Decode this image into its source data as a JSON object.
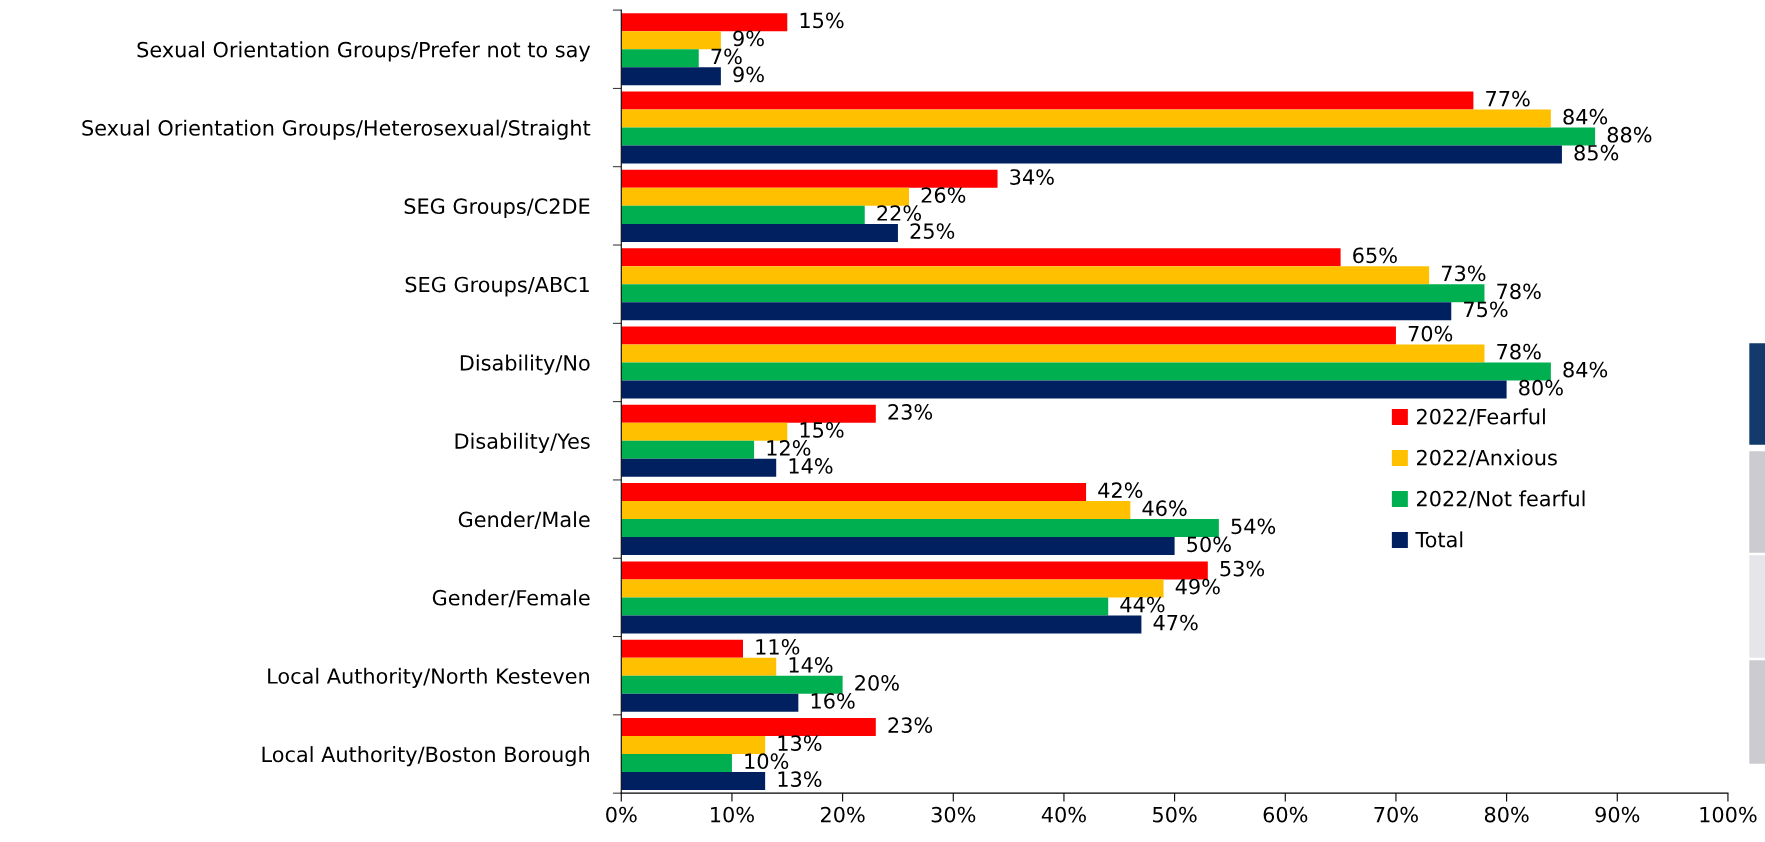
{
  "chart_data": {
    "type": "bar",
    "orientation": "horizontal",
    "categories": [
      "Sexual Orientation Groups/Prefer not to say",
      "Sexual Orientation Groups/Heterosexual/Straight",
      "SEG Groups/C2DE",
      "SEG Groups/ABC1",
      "Disability/No",
      "Disability/Yes",
      "Gender/Male",
      "Gender/Female",
      "Local Authority/North Kesteven",
      "Local Authority/Boston Borough"
    ],
    "series": [
      {
        "name": "2022/Fearful",
        "color": "#ff0000",
        "values": [
          15,
          77,
          34,
          65,
          70,
          23,
          42,
          53,
          11,
          23
        ],
        "value_labels": [
          "15%",
          "77%",
          "34%",
          "65%",
          "70%",
          "23%",
          "42%",
          "53%",
          "11%",
          "23%"
        ]
      },
      {
        "name": "2022/Anxious",
        "color": "#ffc000",
        "values": [
          9,
          84,
          26,
          73,
          78,
          15,
          46,
          49,
          14,
          13
        ],
        "value_labels": [
          "9%",
          "84%",
          "26%",
          "73%",
          "78%",
          "15%",
          "46%",
          "49%",
          "14%",
          "13%"
        ]
      },
      {
        "name": "2022/Not fearful",
        "color": "#00b050",
        "values": [
          7,
          88,
          22,
          78,
          84,
          12,
          54,
          44,
          20,
          10
        ],
        "value_labels": [
          "7%",
          "88%",
          "22%",
          "78%",
          "84%",
          "12%",
          "54%",
          "44%",
          "20%",
          "10%"
        ]
      },
      {
        "name": "Total",
        "color": "#002060",
        "values": [
          9,
          85,
          25,
          75,
          80,
          14,
          50,
          47,
          16,
          13
        ],
        "value_labels": [
          "9%",
          "85%",
          "25%",
          "75%",
          "80%",
          "14%",
          "50%",
          "47%",
          "16%",
          "13%"
        ]
      }
    ],
    "xlim": [
      0,
      100
    ],
    "xticks": [
      {
        "value": 0,
        "label": "0%"
      },
      {
        "value": 10,
        "label": "10%"
      },
      {
        "value": 20,
        "label": "20%"
      },
      {
        "value": 30,
        "label": "30%"
      },
      {
        "value": 40,
        "label": "40%"
      },
      {
        "value": 50,
        "label": "50%"
      },
      {
        "value": 60,
        "label": "60%"
      },
      {
        "value": 70,
        "label": "70%"
      },
      {
        "value": 80,
        "label": "80%"
      },
      {
        "value": 90,
        "label": "90%"
      },
      {
        "value": 100,
        "label": "100%"
      }
    ],
    "grid": false,
    "legend": "right"
  }
}
